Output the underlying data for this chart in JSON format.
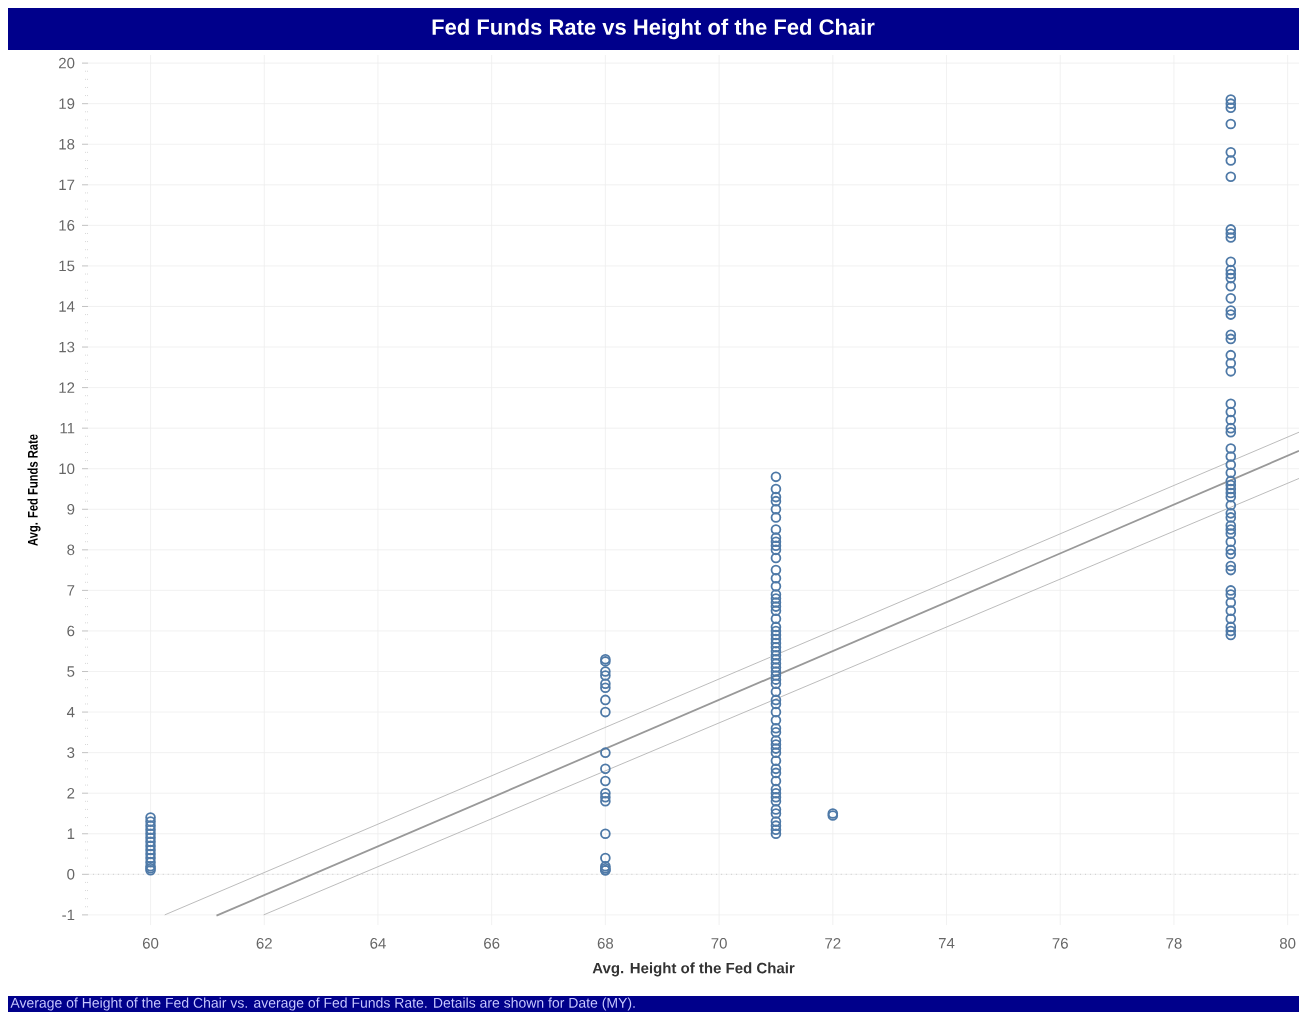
{
  "chart_data": {
    "type": "scatter",
    "title": "Fed Funds Rate vs Height of the Fed Chair",
    "xlabel": "Avg. Height of the Fed Chair",
    "ylabel": "Avg. Fed Funds Rate",
    "annotations": [
      "Average of Height of the Fed Chair vs. average of Fed Funds Rate.  Details are shown for Date (MY)."
    ],
    "xlim": [
      58.9,
      80.2
    ],
    "ylim": [
      -1.25,
      20.2
    ],
    "xticks": [
      60,
      62,
      64,
      66,
      68,
      70,
      72,
      74,
      76,
      78,
      80
    ],
    "yticks": [
      -1,
      0,
      1,
      2,
      3,
      4,
      5,
      6,
      7,
      8,
      9,
      10,
      11,
      12,
      13,
      14,
      15,
      16,
      17,
      18,
      19,
      20
    ],
    "grid": true,
    "marker": "circle",
    "ref_lines": [
      {
        "axis": "y",
        "value": 0,
        "color": "#cccccc",
        "line_style": "dotted"
      }
    ],
    "series": [
      {
        "color": "#4e79a7",
        "x": [
          60,
          60,
          60,
          60,
          60,
          60,
          60,
          60,
          60,
          60,
          60,
          60,
          60,
          60,
          60,
          68,
          68,
          68,
          68,
          68,
          68,
          68,
          68,
          68,
          68,
          68,
          68,
          68,
          68,
          68,
          68,
          68,
          68,
          68,
          68,
          71,
          71,
          71,
          71,
          71,
          71,
          71,
          71,
          71,
          71,
          71,
          71,
          71,
          71,
          71,
          71,
          71,
          71,
          71,
          71,
          71,
          71,
          71,
          71,
          71,
          71,
          71,
          71,
          71,
          71,
          71,
          71,
          71,
          71,
          71,
          71,
          71,
          71,
          71,
          71,
          71,
          71,
          71,
          71,
          71,
          71,
          71,
          71,
          71,
          71,
          71,
          71,
          71,
          71,
          71,
          71,
          71,
          71,
          71,
          71,
          71,
          72,
          72,
          79,
          79,
          79,
          79,
          79,
          79,
          79,
          79,
          79,
          79,
          79,
          79,
          79,
          79,
          79,
          79,
          79,
          79,
          79,
          79,
          79,
          79,
          79,
          79,
          79,
          79,
          79,
          79,
          79,
          79,
          79,
          79,
          79,
          79,
          79,
          79,
          79,
          79,
          79,
          79,
          79,
          79,
          79,
          79,
          79,
          79,
          79,
          79,
          79,
          79,
          79,
          79,
          79,
          79,
          79,
          79
        ],
        "values": [
          0.1,
          0.15,
          0.2,
          0.3,
          0.4,
          0.5,
          0.6,
          0.7,
          0.8,
          0.9,
          1.0,
          1.1,
          1.2,
          1.3,
          1.4,
          5.3,
          5.25,
          5.0,
          4.9,
          4.7,
          4.6,
          4.3,
          4.0,
          3.0,
          2.6,
          2.3,
          2.0,
          1.9,
          1.8,
          1.0,
          0.4,
          0.2,
          0.15,
          0.1,
          0.1,
          9.8,
          9.5,
          9.3,
          9.2,
          9.0,
          8.8,
          8.5,
          8.3,
          8.2,
          8.1,
          8.0,
          7.8,
          7.5,
          7.3,
          7.1,
          6.9,
          6.8,
          6.7,
          6.6,
          6.5,
          6.3,
          6.1,
          6.0,
          5.9,
          5.8,
          5.7,
          5.6,
          5.5,
          5.4,
          5.3,
          5.2,
          5.1,
          5.0,
          4.9,
          4.8,
          4.7,
          4.5,
          4.3,
          4.2,
          4.0,
          3.8,
          3.6,
          3.5,
          3.3,
          3.2,
          3.1,
          3.0,
          2.8,
          2.6,
          2.5,
          2.3,
          2.1,
          2.0,
          1.9,
          1.8,
          1.6,
          1.5,
          1.3,
          1.2,
          1.1,
          1.0,
          1.5,
          1.45,
          19.1,
          19.0,
          18.9,
          18.5,
          17.8,
          17.6,
          17.2,
          15.9,
          15.8,
          15.7,
          15.1,
          14.9,
          14.8,
          14.7,
          14.5,
          14.2,
          13.9,
          13.8,
          13.3,
          13.2,
          12.8,
          12.6,
          12.4,
          11.6,
          11.4,
          11.2,
          11.0,
          10.9,
          10.5,
          10.3,
          10.1,
          9.9,
          9.7,
          9.6,
          9.5,
          9.4,
          9.3,
          9.1,
          8.9,
          8.8,
          8.6,
          8.5,
          8.4,
          8.2,
          8.0,
          7.9,
          7.6,
          7.5,
          7.0,
          6.9,
          6.7,
          6.5,
          6.3,
          6.1,
          6.0,
          5.9
        ]
      },
      {
        "type": "line",
        "marker": "none",
        "color": "#999999",
        "x": [
          61.16,
          80.2
        ],
        "values": [
          -1.02,
          10.44
        ]
      },
      {
        "type": "line",
        "marker": "none",
        "color": "#b4b4b4",
        "x": [
          60.25,
          80.2
        ],
        "values": [
          -1.0,
          10.9
        ]
      },
      {
        "type": "line",
        "marker": "none",
        "color": "#b4b4b4",
        "x": [
          61.99,
          80.2
        ],
        "values": [
          -1.0,
          9.76
        ]
      }
    ]
  }
}
